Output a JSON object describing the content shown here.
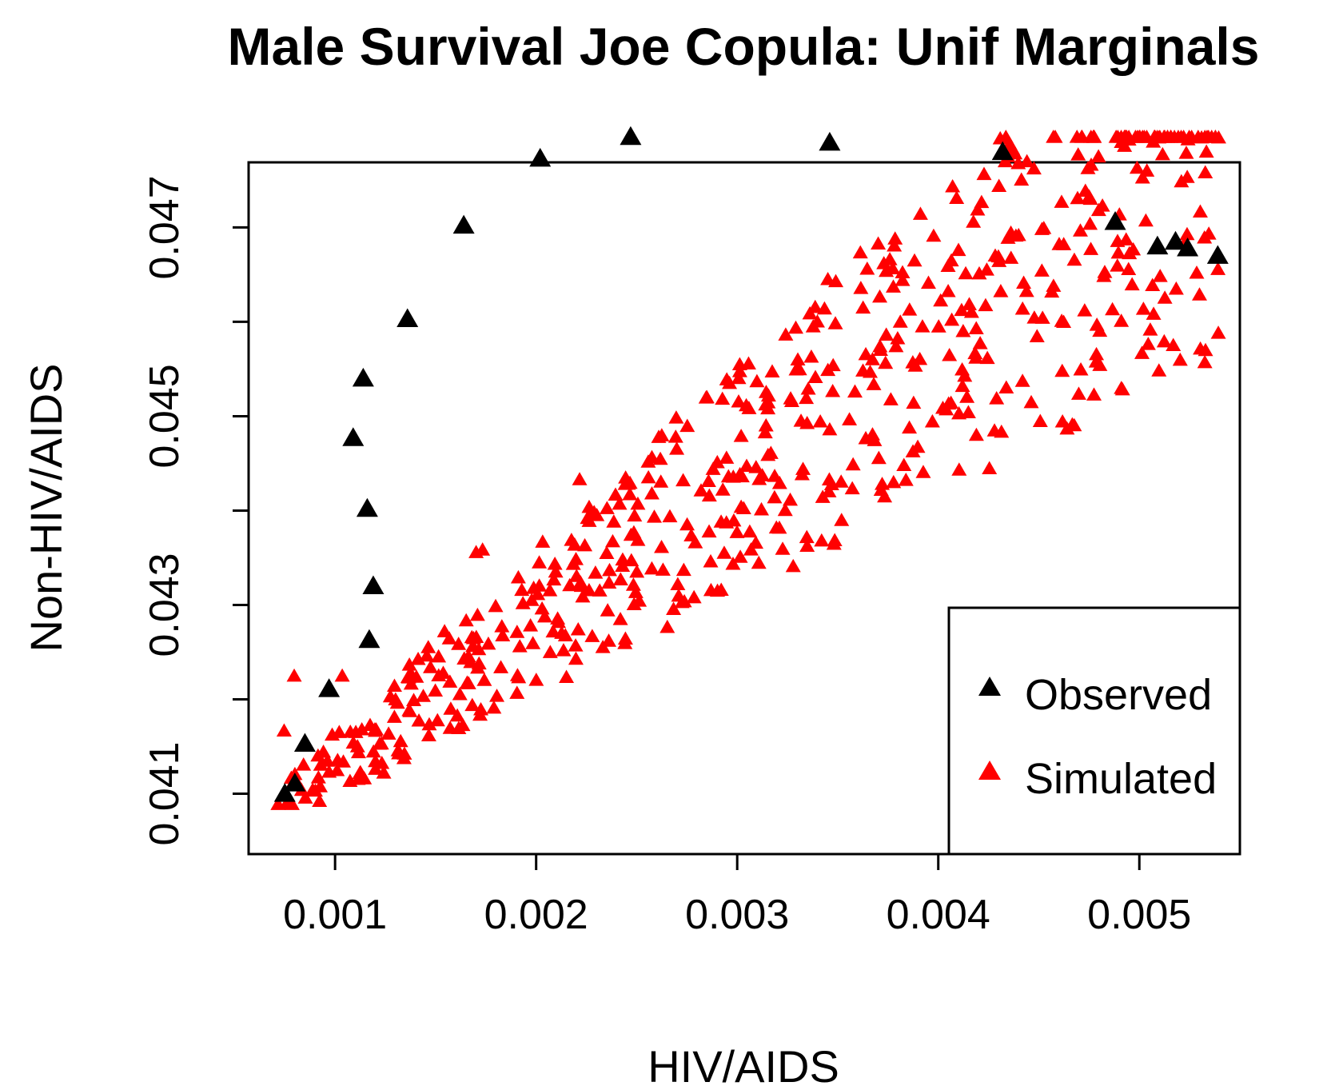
{
  "chart_data": {
    "type": "scatter",
    "title": "Male Survival Joe Copula: Unif Marginals",
    "xlabel": "HIV/AIDS",
    "ylabel": "Non-HIV/AIDS",
    "xlim": [
      0.00057,
      0.0055
    ],
    "ylim": [
      0.04036,
      0.04769
    ],
    "x_ticks": [
      0.001,
      0.002,
      0.003,
      0.004,
      0.005
    ],
    "x_tick_labels": [
      "0.001",
      "0.002",
      "0.003",
      "0.004",
      "0.005"
    ],
    "y_ticks": [
      0.041,
      0.042,
      0.043,
      0.044,
      0.045,
      0.046,
      0.047
    ],
    "y_tick_labels": [
      "0.041",
      "",
      "0.043",
      "",
      "0.045",
      "",
      "0.047"
    ],
    "legend_position": "bottom-right",
    "colors": {
      "observed": "#000000",
      "simulated": "#ff0000"
    },
    "series": [
      {
        "name": "Observed",
        "marker": "triangle",
        "color": "#000000",
        "x": [
          0.00075,
          0.0008,
          0.00085,
          0.00097,
          0.00117,
          0.00119,
          0.00116,
          0.00109,
          0.00114,
          0.00136,
          0.00164,
          0.00202,
          0.00247,
          0.00346,
          0.00432,
          0.00488,
          0.00509,
          0.00518,
          0.00524,
          0.00539
        ],
        "y": [
          0.04099,
          0.0411,
          0.04152,
          0.0421,
          0.04262,
          0.04319,
          0.04401,
          0.04476,
          0.04539,
          0.04602,
          0.04701,
          0.04772,
          0.04795,
          0.04789,
          0.04779,
          0.04705,
          0.04679,
          0.04684,
          0.04677,
          0.04669
        ]
      },
      {
        "name": "Simulated",
        "marker": "triangle",
        "color": "#ff0000",
        "n_points": 620,
        "rng_seed": 20240517
      }
    ]
  }
}
